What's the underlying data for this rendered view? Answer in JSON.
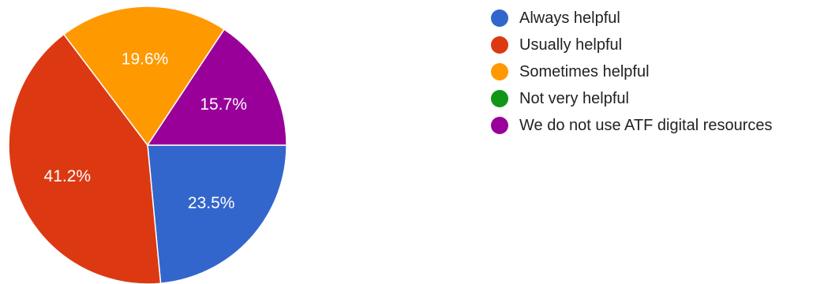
{
  "chart_data": {
    "type": "pie",
    "slices": [
      {
        "label": "Always helpful",
        "value": 23.5,
        "value_label": "23.5%",
        "color": "#3366cc"
      },
      {
        "label": "Usually helpful",
        "value": 41.2,
        "value_label": "41.2%",
        "color": "#dc3912"
      },
      {
        "label": "Sometimes helpful",
        "value": 19.6,
        "value_label": "19.6%",
        "color": "#ff9900"
      },
      {
        "label": "Not very helpful",
        "value": 0,
        "value_label": "",
        "color": "#109618"
      },
      {
        "label": "We do not use ATF digital resources",
        "value": 15.7,
        "value_label": "15.7%",
        "color": "#990099"
      }
    ],
    "start_direction": "3 o'clock",
    "direction": "clockwise",
    "legend_position": "right"
  }
}
